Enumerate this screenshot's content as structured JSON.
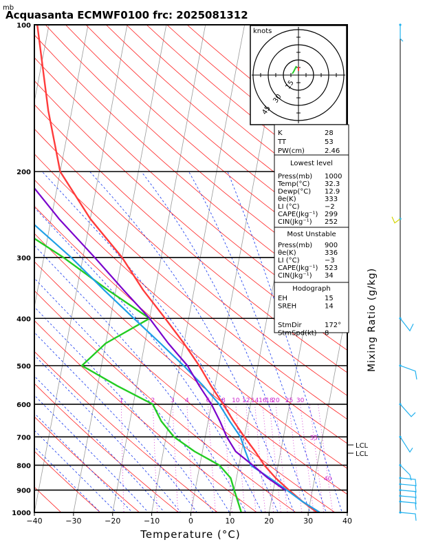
{
  "title": "Acquasanta ECMWF0100 frc: 2025081312",
  "y_unit": "mb",
  "x_axis_title": "Temperature (°C)",
  "right_axis_title": "Mixing Ratio (g/kg)",
  "hodograph": {
    "title": "knots",
    "ring_labels": [
      "15",
      "30",
      "45"
    ]
  },
  "indices": {
    "k": {
      "label": "K",
      "value": "28"
    },
    "tt": {
      "label": "TT",
      "value": "53"
    },
    "pw": {
      "label": "PW(cm)",
      "value": "2.46"
    }
  },
  "lowest_level": {
    "header": "Lowest level",
    "rows": [
      {
        "label": "Press(mb)",
        "value": "1000"
      },
      {
        "label": "Temp(°C)",
        "value": "32.3"
      },
      {
        "label": "Dewp(°C)",
        "value": "12.9"
      },
      {
        "label": "θe(K)",
        "value": "333"
      },
      {
        "label": "LI (°C)",
        "value": "−2"
      },
      {
        "label": "CAPE(Jkg⁻¹)",
        "value": "299"
      },
      {
        "label": "CIN(Jkg⁻¹)",
        "value": "252"
      }
    ]
  },
  "most_unstable": {
    "header": "Most Unstable",
    "rows": [
      {
        "label": "Press(mb)",
        "value": "900"
      },
      {
        "label": "θe(K)",
        "value": "336"
      },
      {
        "label": "LI (°C)",
        "value": "−3"
      },
      {
        "label": "CAPE(Jkg⁻¹)",
        "value": "523"
      },
      {
        "label": "CIN(Jkg⁻¹)",
        "value": "34"
      }
    ]
  },
  "hodograph_box": {
    "header": "Hodograph",
    "rows": [
      {
        "label": "EH",
        "value": "15"
      },
      {
        "label": "SREH",
        "value": "14"
      },
      {
        "label": "StmDir",
        "value": "172°"
      },
      {
        "label": "StmSpd(kt)",
        "value": "8"
      }
    ]
  },
  "lcl_labels": [
    "LCL",
    "LCL"
  ],
  "colors": {
    "temperature": "#ff3b3b",
    "dewpoint": "#22cc22",
    "parcel": "#7a00cc",
    "virtual": "#1f9fe6",
    "isotherm": "#999999",
    "dry_adiabat": "#ff2222",
    "moist_adiabat": "#1133ee",
    "mixing_ratio": "#cc22cc",
    "wind_barb": "#1fb0ee"
  },
  "chart_data": {
    "type": "line",
    "skew_t": true,
    "y_scale": "log",
    "pressure_levels": [
      1000,
      900,
      800,
      700,
      600,
      500,
      400,
      300,
      200,
      100
    ],
    "temperature_ticks": [
      -40,
      -30,
      -20,
      -10,
      0,
      10,
      20,
      30,
      40
    ],
    "xlim": [
      -40,
      40
    ],
    "ylim": [
      1000,
      100
    ],
    "mixing_ratio_labels": [
      "1",
      "2",
      "3",
      "4",
      "6",
      "8",
      "10",
      "12",
      "14",
      "16",
      "18",
      "20",
      "25",
      "30",
      "35",
      "40"
    ],
    "series": [
      {
        "key": "temperature",
        "points": [
          [
            1000,
            32.3
          ],
          [
            950,
            28
          ],
          [
            900,
            24
          ],
          [
            850,
            20
          ],
          [
            800,
            16.5
          ],
          [
            750,
            13.5
          ],
          [
            700,
            10
          ],
          [
            650,
            6.5
          ],
          [
            600,
            3
          ],
          [
            550,
            -1
          ],
          [
            500,
            -5
          ],
          [
            450,
            -10
          ],
          [
            400,
            -16
          ],
          [
            350,
            -23
          ],
          [
            300,
            -30
          ],
          [
            250,
            -40
          ],
          [
            200,
            -50
          ],
          [
            150,
            -56
          ],
          [
            100,
            -63
          ]
        ]
      },
      {
        "key": "dewpoint",
        "points": [
          [
            1000,
            12.9
          ],
          [
            950,
            11.5
          ],
          [
            900,
            10
          ],
          [
            850,
            8.5
          ],
          [
            800,
            5
          ],
          [
            750,
            -2
          ],
          [
            700,
            -8
          ],
          [
            650,
            -12
          ],
          [
            600,
            -15
          ],
          [
            550,
            -25
          ],
          [
            500,
            -35
          ],
          [
            450,
            -30
          ],
          [
            400,
            -20
          ],
          [
            350,
            -32
          ],
          [
            300,
            -45
          ],
          [
            250,
            -62
          ],
          [
            200,
            -68
          ],
          [
            150,
            -72
          ],
          [
            100,
            -76
          ]
        ]
      },
      {
        "key": "virtual",
        "points": [
          [
            1000,
            33
          ],
          [
            950,
            28
          ],
          [
            900,
            23.5
          ],
          [
            850,
            18.5
          ],
          [
            800,
            13
          ],
          [
            750,
            11
          ],
          [
            700,
            9
          ],
          [
            650,
            5.5
          ],
          [
            600,
            2
          ],
          [
            550,
            -3
          ],
          [
            500,
            -9
          ],
          [
            450,
            -16
          ],
          [
            400,
            -24
          ],
          [
            350,
            -33
          ],
          [
            300,
            -43
          ],
          [
            250,
            -56
          ],
          [
            200,
            -70
          ],
          [
            150,
            -84
          ],
          [
            100,
            -100
          ]
        ]
      },
      {
        "key": "parcel",
        "points": [
          [
            900,
            23
          ],
          [
            850,
            18
          ],
          [
            800,
            13.5
          ],
          [
            750,
            8.5
          ],
          [
            700,
            5.5
          ],
          [
            650,
            3
          ],
          [
            600,
            0
          ],
          [
            550,
            -4
          ],
          [
            500,
            -8
          ],
          [
            450,
            -14
          ],
          [
            400,
            -20
          ],
          [
            350,
            -28
          ],
          [
            300,
            -37
          ],
          [
            250,
            -48
          ],
          [
            200,
            -60
          ],
          [
            150,
            -74
          ],
          [
            100,
            -92
          ]
        ]
      }
    ],
    "wind_barbs_pressure": [
      1000,
      950,
      925,
      900,
      875,
      850,
      800,
      700,
      600,
      500,
      400,
      250,
      100
    ]
  }
}
